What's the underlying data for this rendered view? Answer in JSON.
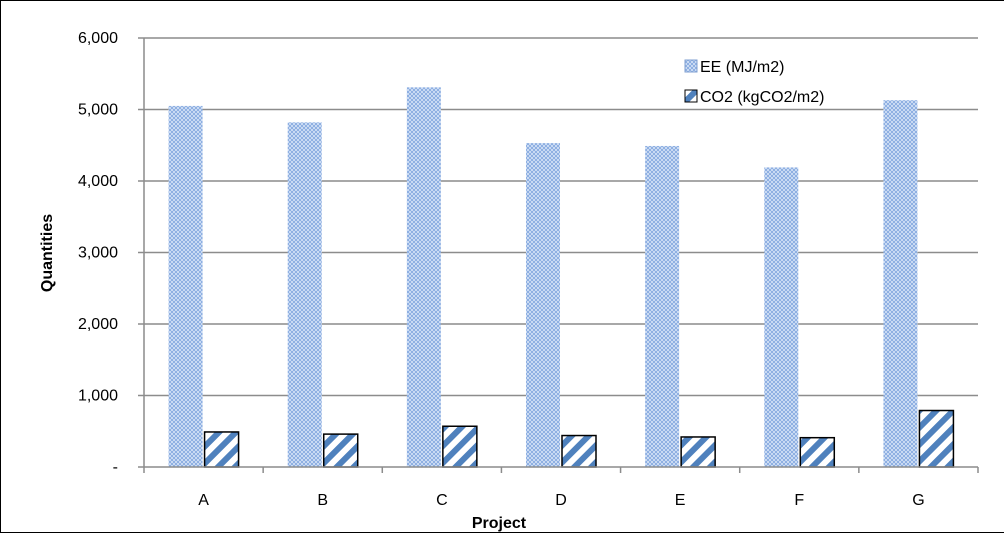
{
  "chart_data": {
    "type": "bar",
    "title": "",
    "xlabel": "Project",
    "ylabel": "Quantities",
    "categories": [
      "A",
      "B",
      "C",
      "D",
      "E",
      "F",
      "G"
    ],
    "series": [
      {
        "name": "EE (MJ/m2)",
        "values": [
          5050,
          4820,
          5310,
          4530,
          4490,
          4190,
          5130
        ],
        "color": "#9db9e6"
      },
      {
        "name": "CO2 (kgCO2/m2)",
        "values": [
          490,
          460,
          570,
          440,
          420,
          410,
          790
        ],
        "color": "#4f81bd"
      }
    ],
    "ylim": [
      0,
      6000
    ],
    "yticks": [
      0,
      1000,
      2000,
      3000,
      4000,
      5000,
      6000
    ],
    "ytick_labels": [
      "-",
      "1,000",
      "2,000",
      "3,000",
      "4,000",
      "5,000",
      "6,000"
    ],
    "grid": true,
    "legend": "top-right"
  }
}
